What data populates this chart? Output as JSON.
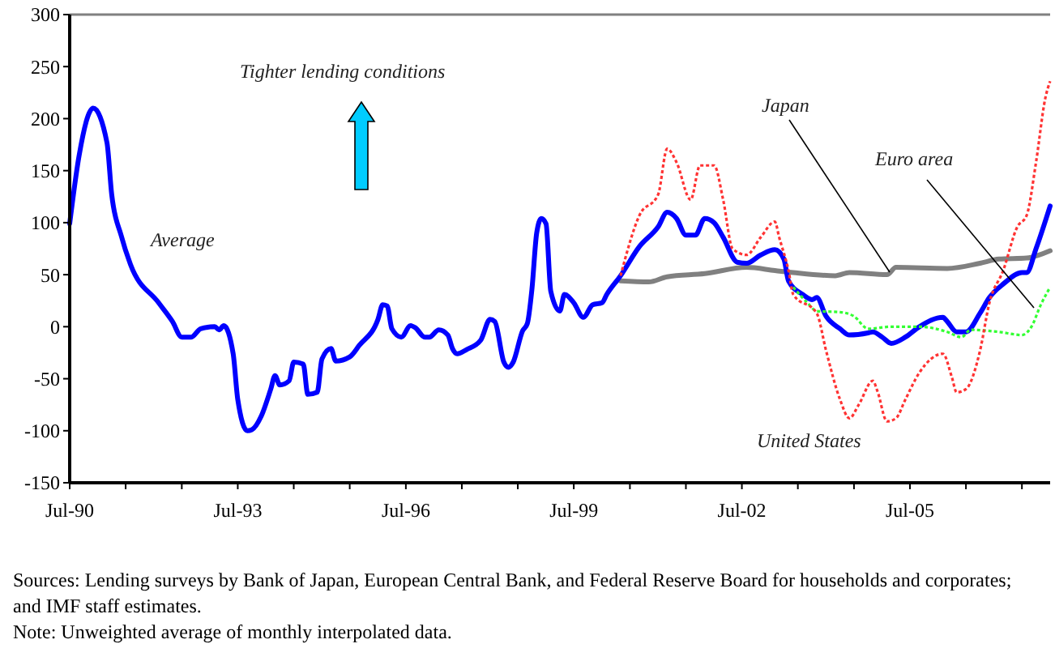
{
  "chart_data": {
    "type": "line",
    "xlim": [
      "1990-07",
      "2008-01"
    ],
    "ylim": [
      -150,
      300
    ],
    "yticks": [
      -150,
      -100,
      -50,
      0,
      50,
      100,
      150,
      200,
      250,
      300
    ],
    "xticks": [
      {
        "value": "1990-07",
        "label": "Jul-90"
      },
      {
        "value": "1991-07",
        "label": null
      },
      {
        "value": "1992-07",
        "label": null
      },
      {
        "value": "1993-07",
        "label": "Jul-93"
      },
      {
        "value": "1994-07",
        "label": null
      },
      {
        "value": "1995-07",
        "label": null
      },
      {
        "value": "1996-07",
        "label": "Jul-96"
      },
      {
        "value": "1997-07",
        "label": null
      },
      {
        "value": "1998-07",
        "label": null
      },
      {
        "value": "1999-07",
        "label": "Jul-99"
      },
      {
        "value": "2000-07",
        "label": null
      },
      {
        "value": "2001-07",
        "label": null
      },
      {
        "value": "2002-07",
        "label": "Jul-02"
      },
      {
        "value": "2003-07",
        "label": null
      },
      {
        "value": "2004-07",
        "label": null
      },
      {
        "value": "2005-07",
        "label": "Jul-05"
      },
      {
        "value": "2006-07",
        "label": null
      },
      {
        "value": "2007-07",
        "label": null
      }
    ],
    "grid": false,
    "legend": false,
    "annotations": [
      "Tighter lending conditions",
      "Sources: Lending surveys by Bank of Japan, European Central Bank, and Federal Reserve Board for households and corporates; and IMF staff estimates.",
      "Note: Unweighted average of monthly interpolated data."
    ],
    "series": [
      {
        "name": "Average",
        "color": "#0000ff",
        "line_style": "solid",
        "x": [
          "1990-07",
          "1990-09",
          "1990-12",
          "1991-03",
          "1991-04",
          "1991-06",
          "1991-08",
          "1992-02",
          "1992-05",
          "1992-07",
          "1992-09",
          "1992-11",
          "1993-02",
          "1993-03",
          "1993-04",
          "1993-06",
          "1993-07",
          "1993-09",
          "1993-10",
          "1993-12",
          "1994-02",
          "1994-03",
          "1994-04",
          "1994-06",
          "1994-07",
          "1994-09",
          "1994-10",
          "1994-12",
          "1995-01",
          "1995-03",
          "1995-04",
          "1995-07",
          "1995-09",
          "1996-01",
          "1996-02",
          "1996-03",
          "1996-04",
          "1996-06",
          "1996-08",
          "1996-09",
          "1996-11",
          "1996-12",
          "1997-02",
          "1997-04",
          "1997-05",
          "1997-06",
          "1997-08",
          "1997-11",
          "1998-01",
          "1998-02",
          "1998-04",
          "1998-05",
          "1998-06",
          "1998-08",
          "1998-09",
          "1998-10",
          "1998-11",
          "1998-12",
          "1999-01",
          "1999-02",
          "1999-04",
          "1999-05",
          "1999-07",
          "1999-09",
          "1999-11",
          "2000-01",
          "2000-02",
          "2000-05",
          "2000-09",
          "2001-01",
          "2001-03",
          "2001-05",
          "2001-07",
          "2001-09",
          "2001-11",
          "2002-01",
          "2002-03",
          "2002-06",
          "2002-08",
          "2002-11",
          "2003-02",
          "2003-04",
          "2003-05",
          "2003-08",
          "2003-10",
          "2003-11",
          "2004-01",
          "2004-04",
          "2004-06",
          "2004-10",
          "2004-11",
          "2005-01",
          "2005-03",
          "2005-06",
          "2005-09",
          "2006-02",
          "2006-03",
          "2006-05",
          "2006-07",
          "2006-10",
          "2006-12",
          "2007-03",
          "2007-07",
          "2007-08",
          "2007-10",
          "2008-01"
        ],
        "values": [
          99,
          165,
          210,
          177,
          127,
          88,
          60,
          23,
          5,
          -10,
          -10,
          -2,
          0,
          -3,
          1,
          -26,
          -70,
          -100,
          -99,
          -86,
          -60,
          -47,
          -56,
          -52,
          -34,
          -36,
          -65,
          -63,
          -31,
          -21,
          -33,
          -29,
          -18,
          7,
          21,
          20,
          -2,
          -10,
          1,
          -1,
          -10,
          -10,
          -3,
          -8,
          -21,
          -26,
          -22,
          -13,
          7,
          5,
          -34,
          -39,
          -34,
          -4,
          3,
          36,
          90,
          104,
          99,
          34,
          15,
          31,
          23,
          9,
          21,
          23,
          31,
          49,
          77,
          96,
          110,
          104,
          88,
          88,
          104,
          100,
          86,
          62,
          61,
          69,
          74,
          65,
          44,
          31,
          26,
          28,
          10,
          -2,
          -8,
          -6,
          -5,
          -10,
          -16,
          -10,
          0,
          9,
          5,
          -5,
          -5,
          13,
          28,
          41,
          52,
          52,
          75,
          116
        ]
      },
      {
        "name": "Japan",
        "color": "#808080",
        "line_style": "solid",
        "x": [
          "2000-05",
          "2000-11",
          "2001-03",
          "2001-11",
          "2002-08",
          "2003-02",
          "2003-06",
          "2004-03",
          "2004-06",
          "2005-02",
          "2005-04",
          "2006-03",
          "2006-10",
          "2007-02",
          "2007-08",
          "2008-01"
        ],
        "values": [
          44,
          43,
          48,
          51,
          57,
          54,
          52,
          49,
          52,
          50,
          57,
          56,
          61,
          65,
          66,
          73
        ]
      },
      {
        "name": "Euro area",
        "color": "#33ff33",
        "line_style": "dotted",
        "x": [
          "2003-06",
          "2003-09",
          "2003-11",
          "2004-04",
          "2004-07",
          "2004-10",
          "2005-03",
          "2005-09",
          "2006-03",
          "2006-06",
          "2006-08",
          "2007-02",
          "2007-07",
          "2007-09",
          "2007-11",
          "2008-01"
        ],
        "values": [
          38,
          23,
          15,
          14,
          10,
          -2,
          0,
          0,
          -5,
          -10,
          -3,
          -5,
          -8,
          0,
          21,
          38
        ]
      },
      {
        "name": "United States",
        "color": "#ff3333",
        "line_style": "dotted",
        "x": [
          "2000-05",
          "2000-09",
          "2001-01",
          "2001-03",
          "2001-05",
          "2001-08",
          "2001-10",
          "2002-01",
          "2002-03",
          "2002-05",
          "2002-08",
          "2002-11",
          "2003-02",
          "2003-03",
          "2003-05",
          "2003-06",
          "2003-11",
          "2004-01",
          "2004-04",
          "2004-06",
          "2004-08",
          "2004-11",
          "2004-12",
          "2005-02",
          "2005-04",
          "2005-06",
          "2005-09",
          "2006-02",
          "2006-04",
          "2006-05",
          "2006-07",
          "2006-10",
          "2006-12",
          "2007-03",
          "2007-06",
          "2007-08",
          "2007-10",
          "2007-12",
          "2008-01"
        ],
        "values": [
          49,
          107,
          127,
          171,
          158,
          122,
          155,
          155,
          122,
          75,
          69,
          86,
          101,
          86,
          54,
          31,
          13,
          -23,
          -70,
          -88,
          -75,
          -52,
          -62,
          -91,
          -88,
          -70,
          -44,
          -26,
          -49,
          -63,
          -60,
          -23,
          23,
          54,
          96,
          107,
          158,
          220,
          236
        ]
      }
    ]
  }
}
